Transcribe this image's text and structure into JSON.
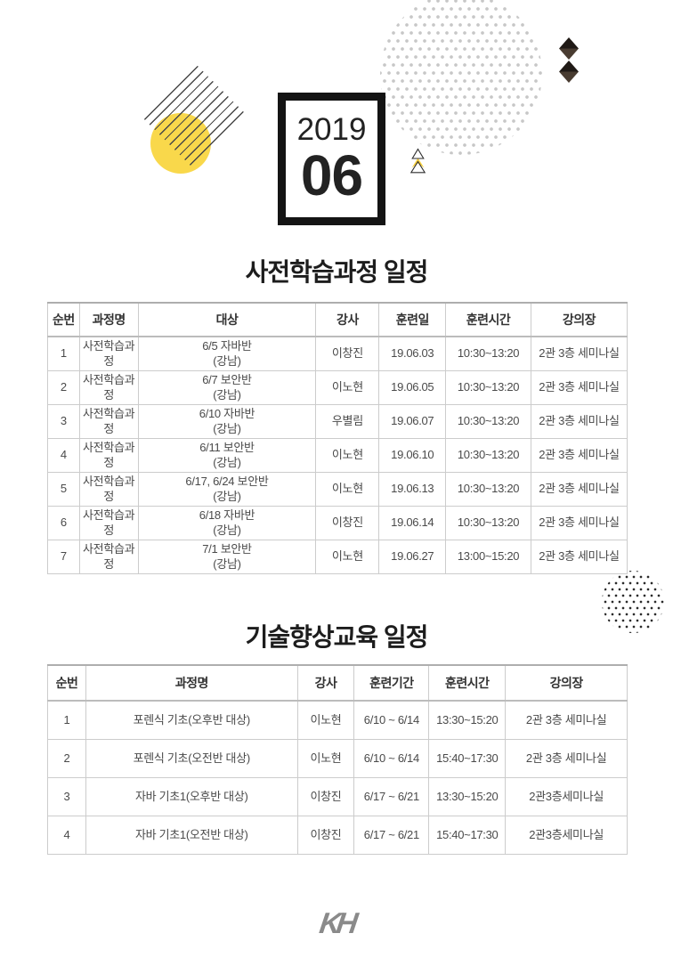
{
  "calendar": {
    "year": "2019",
    "month": "06"
  },
  "section1": {
    "title": "사전학습과정 일정",
    "columns": [
      "순번",
      "과정명",
      "대상",
      "강사",
      "훈련일",
      "훈련시간",
      "강의장"
    ],
    "rows": [
      [
        "1",
        "사전학습과정",
        "6/5 자바반\n(강남)",
        "이창진",
        "19.06.03",
        "10:30~13:20",
        "2관 3층 세미나실"
      ],
      [
        "2",
        "사전학습과정",
        "6/7 보안반\n(강남)",
        "이노현",
        "19.06.05",
        "10:30~13:20",
        "2관 3층 세미나실"
      ],
      [
        "3",
        "사전학습과정",
        "6/10 자바반\n(강남)",
        "우별림",
        "19.06.07",
        "10:30~13:20",
        "2관 3층 세미나실"
      ],
      [
        "4",
        "사전학습과정",
        "6/11 보안반\n(강남)",
        "이노현",
        "19.06.10",
        "10:30~13:20",
        "2관 3층 세미나실"
      ],
      [
        "5",
        "사전학습과정",
        "6/17, 6/24 보안반\n(강남)",
        "이노현",
        "19.06.13",
        "10:30~13:20",
        "2관 3층 세미나실"
      ],
      [
        "6",
        "사전학습과정",
        "6/18 자바반\n(강남)",
        "이창진",
        "19.06.14",
        "10:30~13:20",
        "2관 3층 세미나실"
      ],
      [
        "7",
        "사전학습과정",
        "7/1 보안반\n(강남)",
        "이노현",
        "19.06.27",
        "13:00~15:20",
        "2관 3층 세미나실"
      ]
    ]
  },
  "section2": {
    "title": "기술향상교육 일정",
    "columns": [
      "순번",
      "과정명",
      "강사",
      "훈련기간",
      "훈련시간",
      "강의장"
    ],
    "rows": [
      [
        "1",
        "포렌식 기초(오후반 대상)",
        "이노현",
        "6/10 ~ 6/14",
        "13:30~15:20",
        "2관 3층 세미나실"
      ],
      [
        "2",
        "포렌식 기초(오전반 대상)",
        "이노현",
        "6/10 ~ 6/14",
        "15:40~17:30",
        "2관 3층 세미나실"
      ],
      [
        "3",
        "자바 기초1(오후반 대상)",
        "이창진",
        "6/17 ~ 6/21",
        "13:30~15:20",
        "2관3층세미나실"
      ],
      [
        "4",
        "자바 기초1(오전반 대상)",
        "이창진",
        "6/17 ~ 6/21",
        "15:40~17:30",
        "2관3층세미나실"
      ]
    ]
  },
  "footer": {
    "logo_text": "KH"
  },
  "colors": {
    "accent_yellow": "#F9D84B",
    "table_border": "#cccccc",
    "dot_gray": "#c7c7c7",
    "dot_black": "#2b2b2b",
    "text_dark": "#1d1d1d",
    "text_body": "#4a4a4a",
    "logo_gray": "#8a8a8a"
  }
}
